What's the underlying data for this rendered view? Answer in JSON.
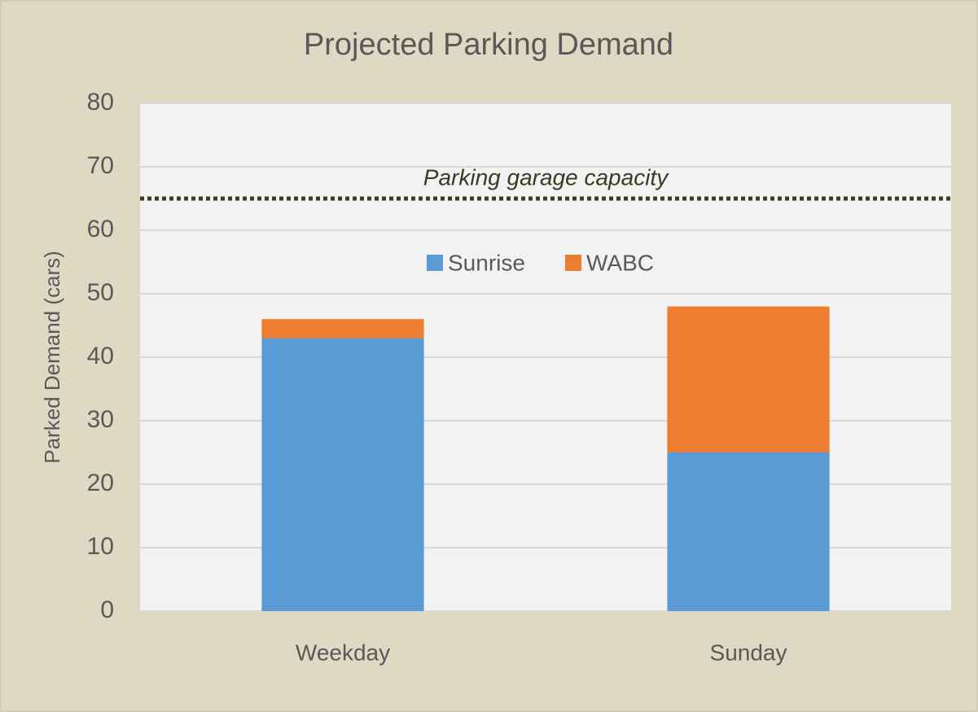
{
  "chart_data": {
    "type": "stacked_bar",
    "title": "Projected Parking Demand",
    "y_label": "Parked Demand (cars)",
    "categories": [
      "Weekday",
      "Sunday"
    ],
    "series": [
      {
        "name": "Sunrise",
        "color": "#5b9bd5",
        "values": [
          43,
          25
        ]
      },
      {
        "name": "WABC",
        "color": "#ed7d31",
        "values": [
          3,
          23
        ]
      }
    ],
    "ylim": [
      0,
      80
    ],
    "yticks": [
      0,
      10,
      20,
      30,
      40,
      50,
      60,
      70,
      80
    ],
    "grid": true,
    "legend": "top",
    "capacity": {
      "label": "Parking garage capacity",
      "value": 65
    }
  }
}
